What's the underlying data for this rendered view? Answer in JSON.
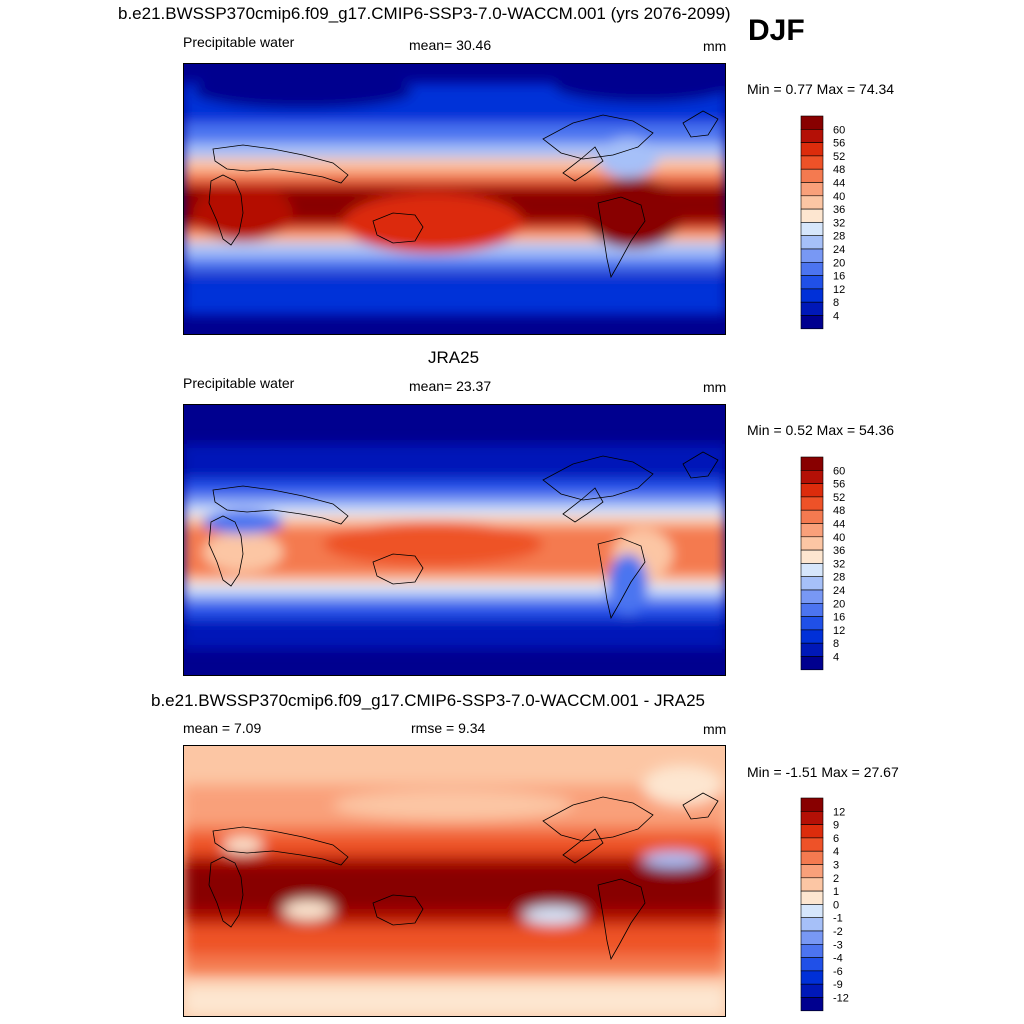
{
  "season": "DJF",
  "colors": {
    "level_colors_abs": [
      "#00008f",
      "#0018b8",
      "#0030d8",
      "#2050e8",
      "#4c74f0",
      "#7898f4",
      "#a6c0f8",
      "#d6e6fb",
      "#fde6d0",
      "#fcc6a4",
      "#f9a07a",
      "#f47a50",
      "#ee5228",
      "#dc2c0c",
      "#b41006",
      "#880000"
    ],
    "level_colors_diff": [
      "#00008f",
      "#0018b8",
      "#0030d8",
      "#2050e8",
      "#4c74f0",
      "#7898f4",
      "#a6c0f8",
      "#d6e6fb",
      "#fde6d0",
      "#fcc6a4",
      "#f9a07a",
      "#f47a50",
      "#ee5228",
      "#dc2c0c",
      "#b41006",
      "#880000"
    ]
  },
  "panels": [
    {
      "title": "b.e21.BWSSP370cmip6.f09_g17.CMIP6-SSP3-7.0-WACCM.001 (yrs 2076-2099)",
      "left_label": "Precipitable water",
      "center_label": "mean=  30.46",
      "units": "mm",
      "minmax": "Min =   0.77 Max =  74.34",
      "colorbar_labels": [
        "60",
        "56",
        "52",
        "48",
        "44",
        "40",
        "36",
        "32",
        "28",
        "24",
        "20",
        "16",
        "12",
        "8",
        "4"
      ]
    },
    {
      "title": "JRA25",
      "left_label": "Precipitable water",
      "center_label": "mean=  23.37",
      "units": "mm",
      "minmax": "Min =   0.52 Max =  54.36",
      "colorbar_labels": [
        "60",
        "56",
        "52",
        "48",
        "44",
        "40",
        "36",
        "32",
        "28",
        "24",
        "20",
        "16",
        "12",
        "8",
        "4"
      ]
    },
    {
      "title": "b.e21.BWSSP370cmip6.f09_g17.CMIP6-SSP3-7.0-WACCM.001 - JRA25",
      "left_label": "mean =   7.09",
      "center_label": "rmse =   9.34",
      "units": "mm",
      "minmax": "Min =  -1.51 Max =  27.67",
      "colorbar_labels": [
        "12",
        "9",
        "6",
        "4",
        "3",
        "2",
        "1",
        "0",
        "-1",
        "-2",
        "-3",
        "-4",
        "-6",
        "-9",
        "-12"
      ]
    }
  ],
  "chart_data": [
    {
      "type": "heatmap",
      "title": "b.e21.BWSSP370cmip6.f09_g17.CMIP6-SSP3-7.0-WACCM.001 (yrs 2076-2099)",
      "variable": "Precipitable water",
      "units": "mm",
      "mean": 30.46,
      "min": 0.77,
      "max": 74.34,
      "contour_levels": [
        4,
        8,
        12,
        16,
        20,
        24,
        28,
        32,
        36,
        40,
        44,
        48,
        52,
        56,
        60
      ]
    },
    {
      "type": "heatmap",
      "title": "JRA25",
      "variable": "Precipitable water",
      "units": "mm",
      "mean": 23.37,
      "min": 0.52,
      "max": 54.36,
      "contour_levels": [
        4,
        8,
        12,
        16,
        20,
        24,
        28,
        32,
        36,
        40,
        44,
        48,
        52,
        56,
        60
      ]
    },
    {
      "type": "heatmap",
      "title": "b.e21.BWSSP370cmip6.f09_g17.CMIP6-SSP3-7.0-WACCM.001 - JRA25",
      "units": "mm",
      "mean": 7.09,
      "rmse": 9.34,
      "min": -1.51,
      "max": 27.67,
      "contour_levels": [
        -12,
        -9,
        -6,
        -4,
        -3,
        -2,
        -1,
        0,
        1,
        2,
        3,
        4,
        6,
        9,
        12
      ]
    }
  ]
}
